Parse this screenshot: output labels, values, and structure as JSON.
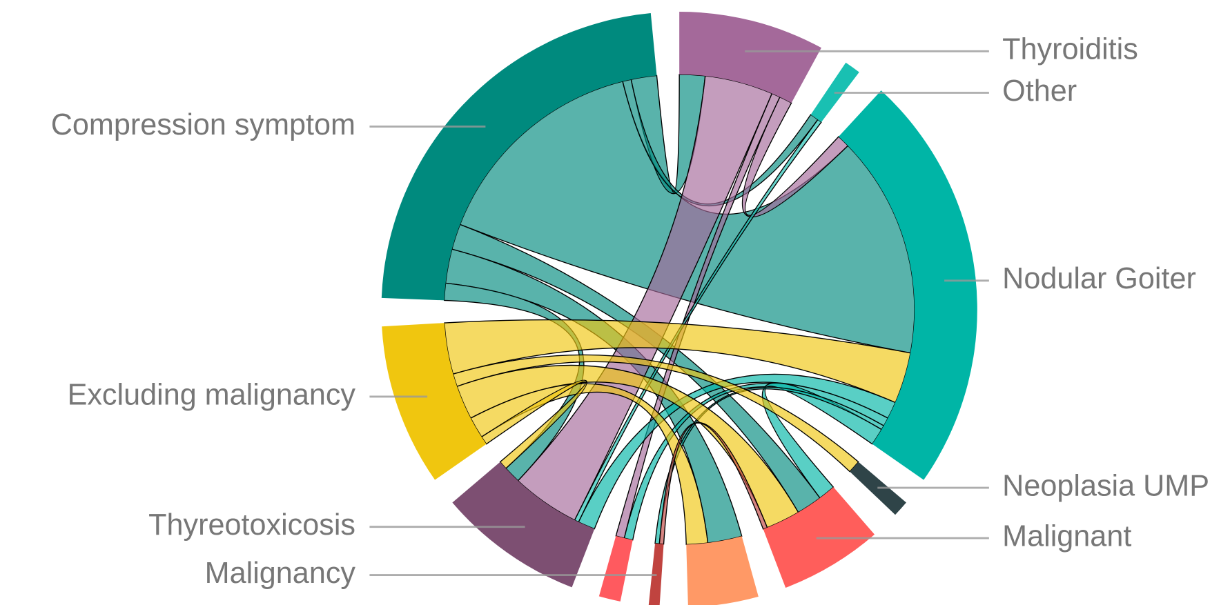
{
  "chart_data": {
    "type": "chord",
    "nodes": [
      {
        "name": "Thyroiditis",
        "color": "#a4699a"
      },
      {
        "name": "Other",
        "color": "#19c0b2"
      },
      {
        "name": "Nodular Goiter",
        "color": "#00b5a6"
      },
      {
        "name": "Neoplasia UMP",
        "color": "#2f4448"
      },
      {
        "name": "Malignant",
        "color": "#ff5e5b"
      },
      {
        "name": null,
        "color": "#ff9966"
      },
      {
        "name": "Malignancy",
        "color": "#c0433f"
      },
      {
        "name": null,
        "color": "#ff5a5f"
      },
      {
        "name": "Thyreotoxicosis",
        "color": "#7d4f72"
      },
      {
        "name": "Excluding malignancy",
        "color": "#f0c60f"
      },
      {
        "name": "Compression symptom",
        "color": "#008a7e"
      }
    ],
    "links": [
      {
        "source": 10,
        "target": 2,
        "value": 52
      },
      {
        "source": 10,
        "target": 0,
        "value": 6
      },
      {
        "source": 10,
        "target": 1,
        "value": 2
      },
      {
        "source": 10,
        "target": 5,
        "value": 8
      },
      {
        "source": 10,
        "target": 4,
        "value": 6
      },
      {
        "source": 10,
        "target": 8,
        "value": 4
      },
      {
        "source": 0,
        "target": 8,
        "value": 16
      },
      {
        "source": 0,
        "target": 2,
        "value": 3
      },
      {
        "source": 0,
        "target": 7,
        "value": 2
      },
      {
        "source": 1,
        "target": 8,
        "value": 1
      },
      {
        "source": 9,
        "target": 2,
        "value": 12
      },
      {
        "source": 2,
        "target": 8,
        "value": 4
      },
      {
        "source": 2,
        "target": 7,
        "value": 2
      },
      {
        "source": 2,
        "target": 4,
        "value": 4
      },
      {
        "source": 2,
        "target": 6,
        "value": 1
      },
      {
        "source": 9,
        "target": 4,
        "value": 8
      },
      {
        "source": 9,
        "target": 5,
        "value": 5
      },
      {
        "source": 9,
        "target": 3,
        "value": 3
      },
      {
        "source": 9,
        "target": 8,
        "value": 2
      },
      {
        "source": 6,
        "target": 4,
        "value": 1
      }
    ]
  }
}
